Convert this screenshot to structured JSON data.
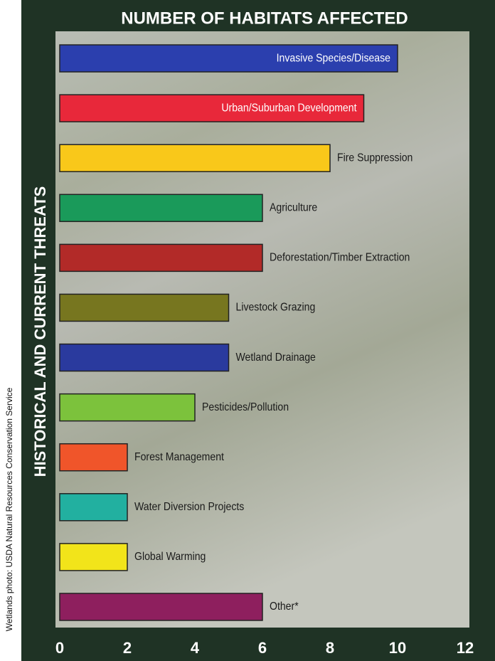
{
  "credit": "Wetlands photo: USDA Natural Resources Conservation Service",
  "chart_data": {
    "type": "bar",
    "orientation": "horizontal",
    "title": "NUMBER OF HABITATS AFFECTED",
    "y_label": "HISTORICAL AND CURRENT THREATS",
    "categories": [
      "Invasive Species/Disease",
      "Urban/Suburban Development",
      "Fire Suppression",
      "Agriculture",
      "Deforestation/Timber Extraction",
      "Livestock Grazing",
      "Wetland Drainage",
      "Pesticides/Pollution",
      "Forest Management",
      "Water Diversion Projects",
      "Global Warming",
      "Other*"
    ],
    "values": [
      10,
      9,
      8,
      6,
      6,
      5,
      5,
      4,
      2,
      2,
      2,
      6
    ],
    "colors": [
      "#2b3fae",
      "#e8283a",
      "#f9c81a",
      "#1a9a5a",
      "#b22a28",
      "#77761f",
      "#2a3a9e",
      "#7cc23c",
      "#f0552a",
      "#22b0a0",
      "#f2e41a",
      "#8e1f5e"
    ],
    "xlim": [
      0,
      12
    ],
    "xticks": [
      0,
      2,
      4,
      6,
      8,
      10,
      12
    ],
    "grid": false
  }
}
